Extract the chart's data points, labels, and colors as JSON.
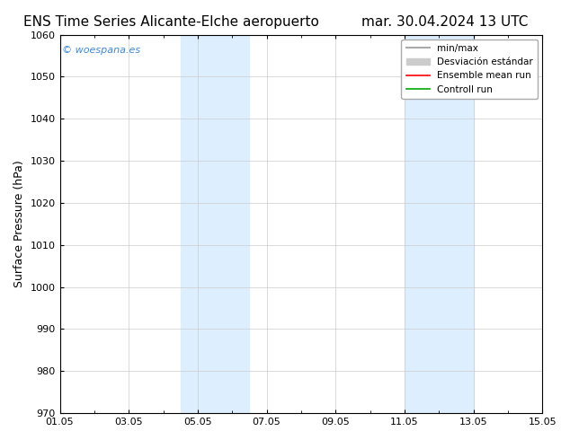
{
  "title_left": "ENS Time Series Alicante-Elche aeropuerto",
  "title_right": "mar. 30.04.2024 13 UTC",
  "ylabel": "Surface Pressure (hPa)",
  "ylim": [
    970,
    1060
  ],
  "yticks": [
    970,
    980,
    990,
    1000,
    1010,
    1020,
    1030,
    1040,
    1050,
    1060
  ],
  "xlim_days": [
    0,
    14
  ],
  "xtick_labels": [
    "01.05",
    "03.05",
    "05.05",
    "07.05",
    "09.05",
    "11.05",
    "13.05",
    "15.05"
  ],
  "xtick_positions": [
    0,
    2,
    4,
    6,
    8,
    10,
    12,
    14
  ],
  "shade_bands": [
    {
      "xmin": 3.5,
      "xmax": 5.5
    },
    {
      "xmin": 10.0,
      "xmax": 12.0
    }
  ],
  "shade_color": "#ddeeff",
  "watermark": "© woespana.es",
  "watermark_color": "#4488cc",
  "legend_items": [
    {
      "label": "min/max",
      "color": "#aaaaaa",
      "lw": 1.5,
      "linestyle": "-"
    },
    {
      "label": "Desviación estándar",
      "color": "#cccccc",
      "lw": 6,
      "linestyle": "-"
    },
    {
      "label": "Ensemble mean run",
      "color": "#ff0000",
      "lw": 1.2,
      "linestyle": "-"
    },
    {
      "label": "Controll run",
      "color": "#00aa00",
      "lw": 1.2,
      "linestyle": "-"
    }
  ],
  "bg_color": "#ffffff",
  "plot_bg_color": "#ffffff",
  "title_fontsize": 11,
  "tick_fontsize": 8,
  "ylabel_fontsize": 9
}
